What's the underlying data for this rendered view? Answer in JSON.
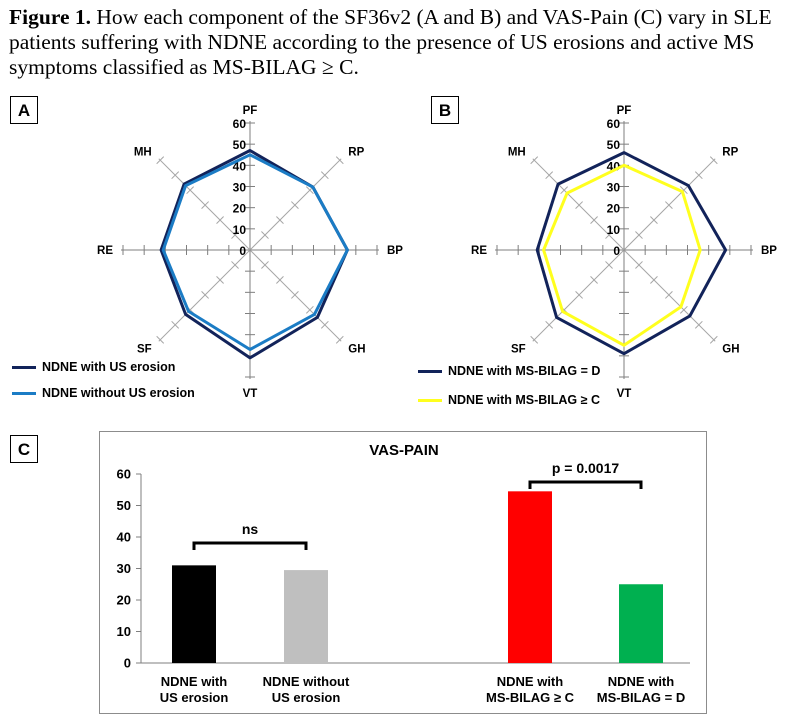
{
  "caption": {
    "bold": "Figure 1.",
    "text": " How each component of the SF36v2  (A and B) and VAS-Pain (C) vary in SLE patients suffering with NDNE according to the presence of US erosions and active MS symptoms classified  as MS-BILAG ≥ C."
  },
  "panels": {
    "a": "A",
    "b": "B",
    "c": "C"
  },
  "chart_data": [
    {
      "type": "radar",
      "panel": "A",
      "axes": [
        "PF",
        "RP",
        "BP",
        "GH",
        "VT",
        "SF",
        "RE",
        "MH"
      ],
      "rmax": 60,
      "ticks": [
        0,
        10,
        20,
        30,
        40,
        50,
        60
      ],
      "series": [
        {
          "name": "NDNE with US erosion",
          "color": "#12235a",
          "values": [
            47,
            42,
            46,
            45,
            51,
            43,
            42,
            44
          ]
        },
        {
          "name": "NDNE without US erosion",
          "color": "#1b7cc5",
          "values": [
            45,
            42,
            46,
            43,
            47,
            41,
            41,
            43
          ]
        }
      ]
    },
    {
      "type": "radar",
      "panel": "B",
      "axes": [
        "PF",
        "RP",
        "BP",
        "GH",
        "VT",
        "SF",
        "RE",
        "MH"
      ],
      "rmax": 60,
      "ticks": [
        0,
        10,
        20,
        30,
        40,
        50,
        60
      ],
      "series": [
        {
          "name": "NDNE with MS-BILAG = D",
          "color": "#12235a",
          "values": [
            46,
            43,
            48,
            44,
            49,
            45,
            41,
            44
          ]
        },
        {
          "name": "NDNE with MS-BILAG ≥ C",
          "color": "#ffff1e",
          "values": [
            40,
            39,
            36,
            38,
            45,
            41,
            38,
            38
          ]
        }
      ]
    },
    {
      "type": "bar",
      "panel": "C",
      "title": "VAS-PAIN",
      "ylim": [
        0,
        60
      ],
      "yticks": [
        0,
        10,
        20,
        30,
        40,
        50,
        60
      ],
      "bars": [
        {
          "label": "NDNE with US erosion",
          "value": 31,
          "color": "#000000"
        },
        {
          "label": "NDNE without US erosion",
          "value": 29.5,
          "color": "#bfbfbf"
        },
        {
          "label": "NDNE with MS-BILAG ≥ C",
          "value": 54.5,
          "color": "#ff0000"
        },
        {
          "label": "NDNE with MS-BILAG = D",
          "value": 25,
          "color": "#00b050"
        }
      ],
      "annotations": [
        {
          "text": "ns",
          "from": 0,
          "to": 1
        },
        {
          "text": "p = 0.0017",
          "from": 2,
          "to": 3
        }
      ]
    }
  ]
}
